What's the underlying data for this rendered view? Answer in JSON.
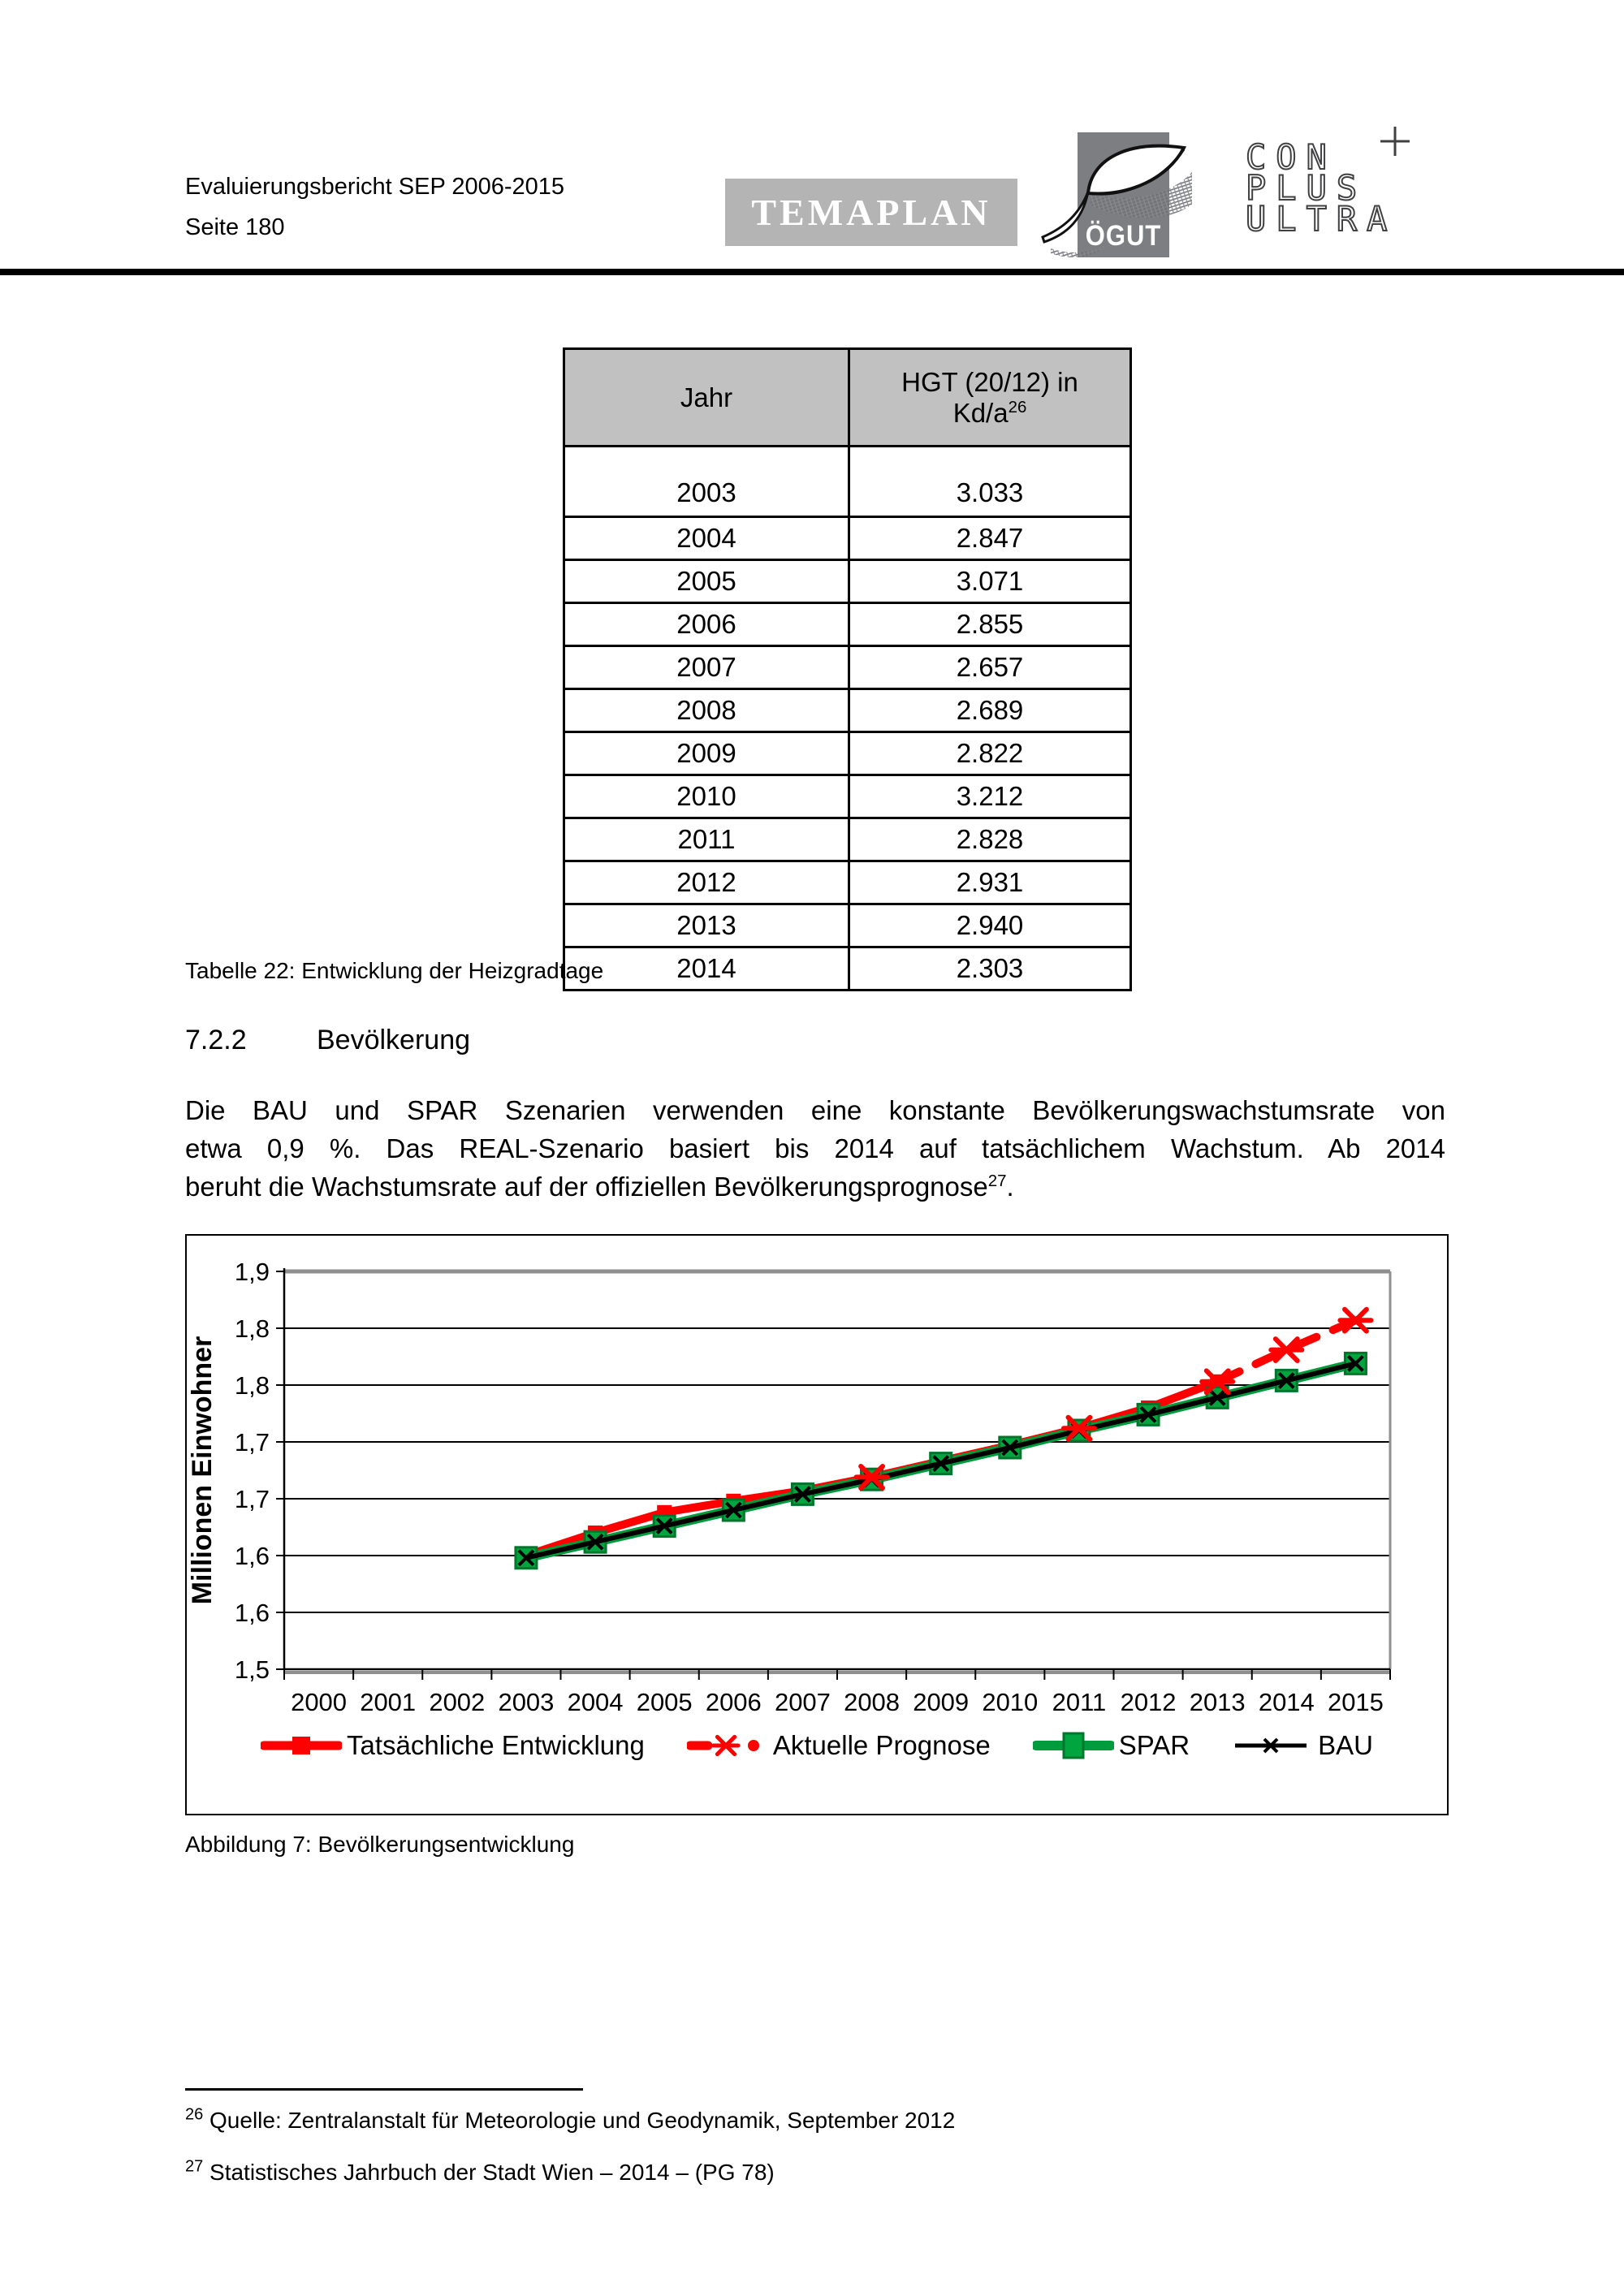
{
  "header": {
    "line1": "Evaluierungsbericht SEP 2006-2015",
    "line2": "Seite 180",
    "logos": {
      "temaplan": "TEMAPLAN",
      "oegut": "ÖGUT",
      "conplusultra": [
        "CON",
        "PLUS",
        "ULTRA"
      ],
      "plus_sign": "+"
    }
  },
  "table": {
    "col1_header": "Jahr",
    "col2_header_line1": "HGT (20/12) in",
    "col2_header_base": "Kd/a",
    "col2_header_sup": "26",
    "rows": [
      [
        "2003",
        "3.033"
      ],
      [
        "2004",
        "2.847"
      ],
      [
        "2005",
        "3.071"
      ],
      [
        "2006",
        "2.855"
      ],
      [
        "2007",
        "2.657"
      ],
      [
        "2008",
        "2.689"
      ],
      [
        "2009",
        "2.822"
      ],
      [
        "2010",
        "3.212"
      ],
      [
        "2011",
        "2.828"
      ],
      [
        "2012",
        "2.931"
      ],
      [
        "2013",
        "2.940"
      ],
      [
        "2014",
        "2.303"
      ]
    ],
    "caption": "Tabelle 22: Entwicklung der Heizgradtage"
  },
  "section": {
    "number": "7.2.2",
    "title": "Bevölkerung"
  },
  "paragraph": {
    "line1": "Die BAU und SPAR Szenarien verwenden eine konstante Bevölkerungswachstumsrate von",
    "line2": "etwa 0,9 %. Das REAL-Szenario basiert bis 2014 auf tatsächlichem Wachstum. Ab 2014",
    "line3_pre": "beruht die Wachstumsrate auf der offiziellen Bevölkerungsprognose",
    "line3_sup": "27",
    "line3_post": "."
  },
  "figure": {
    "caption": "Abbildung 7: Bevölkerungsentwicklung"
  },
  "chart_data": {
    "type": "line",
    "title": "",
    "xlabel": "",
    "ylabel": "Millionen Einwohner",
    "x_categories": [
      "2000",
      "2001",
      "2002",
      "2003",
      "2004",
      "2005",
      "2006",
      "2007",
      "2008",
      "2009",
      "2010",
      "2011",
      "2012",
      "2013",
      "2014",
      "2015"
    ],
    "y_axis": {
      "min": 1.5,
      "max": 1.85,
      "step": 0.05,
      "tick_labels_top_to_bottom": [
        "1,9",
        "1,8",
        "1,8",
        "1,7",
        "1,7",
        "1,6",
        "1,6",
        "1,5"
      ]
    },
    "grid": true,
    "legend_position": "bottom",
    "series": [
      {
        "name": "Tatsächliche Entwicklung",
        "color": "#ff0000",
        "line_style": "solid",
        "marker": "filled-square",
        "x": [
          2003,
          2004,
          2005,
          2006,
          2007,
          2008,
          2009,
          2010,
          2011,
          2012,
          2013
        ],
        "y": [
          1.6,
          1.62,
          1.638,
          1.648,
          1.657,
          1.669,
          1.683,
          1.697,
          1.712,
          1.73,
          1.753
        ]
      },
      {
        "name": "Aktuelle Prognose",
        "color": "#ff0000",
        "line_style": "dashed",
        "marker": "star",
        "x": [
          2008,
          2011,
          2013,
          2014,
          2015
        ],
        "y": [
          1.669,
          1.712,
          1.753,
          1.781,
          1.807
        ],
        "dashed_segment_from_x": 2013
      },
      {
        "name": "SPAR",
        "color": "#009b3d",
        "marker_fill": "#00a53f",
        "marker_stroke": "#00762c",
        "line_style": "solid",
        "marker": "filled-square",
        "x": [
          2003,
          2004,
          2005,
          2006,
          2007,
          2008,
          2009,
          2010,
          2011,
          2012,
          2013,
          2014,
          2015
        ],
        "y": [
          1.598,
          1.612,
          1.626,
          1.64,
          1.654,
          1.667,
          1.681,
          1.695,
          1.71,
          1.724,
          1.739,
          1.754,
          1.769
        ]
      },
      {
        "name": "BAU",
        "color": "#000000",
        "line_style": "solid",
        "marker": "x",
        "x": [
          2003,
          2004,
          2005,
          2006,
          2007,
          2008,
          2009,
          2010,
          2011,
          2012,
          2013,
          2014,
          2015
        ],
        "y": [
          1.598,
          1.612,
          1.626,
          1.64,
          1.654,
          1.667,
          1.681,
          1.695,
          1.71,
          1.724,
          1.739,
          1.754,
          1.769
        ]
      }
    ]
  },
  "footnotes": [
    {
      "sup": "26",
      "text": "Quelle: Zentralanstalt für Meteorologie und Geodynamik, September 2012"
    },
    {
      "sup": "27",
      "text": "Statistisches Jahrbuch der Stadt Wien – 2014 – (PG 78)"
    }
  ]
}
